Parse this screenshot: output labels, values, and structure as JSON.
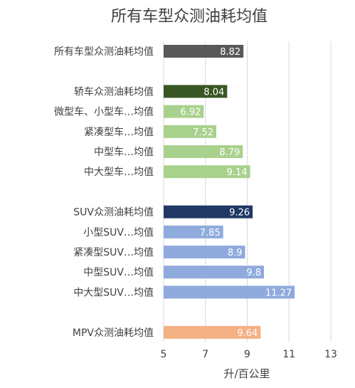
{
  "chart_data": {
    "type": "bar",
    "orientation": "horizontal",
    "title": "所有车型众测油耗均值",
    "xlabel": "升/百公里",
    "ylabel": "",
    "xlim": [
      5,
      13
    ],
    "xticks": [
      5,
      7,
      9,
      11,
      13
    ],
    "grid": true,
    "legend": "none",
    "categories": [
      "所有车型众测油耗均值",
      "",
      "轿车众测油耗均值",
      "微型车、小型车…均值",
      "紧凑型车…均值",
      "中型车…均值",
      "中大型车…均值",
      "",
      "SUV众测油耗均值",
      "小型SUV…均值",
      "紧凑型SUV…均值",
      "中型SUV…均值",
      "中大型SUV…均值",
      "",
      "MPV众测油耗均值"
    ],
    "values": [
      8.82,
      null,
      8.04,
      6.92,
      7.52,
      8.79,
      9.14,
      null,
      9.26,
      7.85,
      8.9,
      9.8,
      11.27,
      null,
      9.64
    ],
    "value_labels": [
      "8.82",
      "",
      "8.04",
      "6.92",
      "7.52",
      "8.79",
      "9.14",
      "",
      "9.26",
      "7.85",
      "8.9",
      "9.8",
      "11.27",
      "",
      "9.64"
    ],
    "colors": [
      "#595959",
      "",
      "#375623",
      "#a9d18e",
      "#a9d18e",
      "#a9d18e",
      "#a9d18e",
      "",
      "#203864",
      "#8faadc",
      "#8faadc",
      "#8faadc",
      "#8faadc",
      "",
      "#f4b183"
    ]
  }
}
